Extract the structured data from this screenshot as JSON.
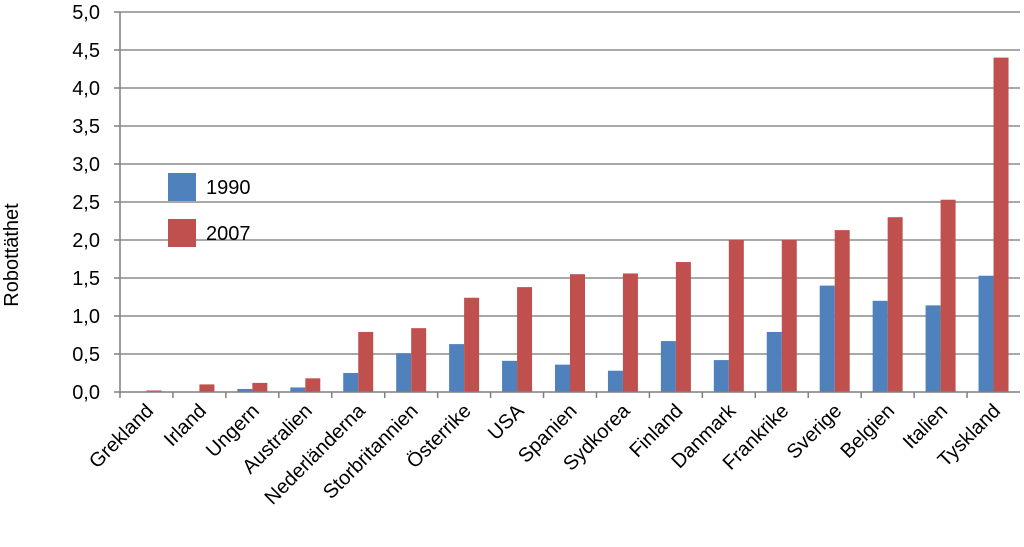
{
  "chart_data": {
    "type": "bar",
    "ylabel": "Robottäthet",
    "ylim": [
      0,
      5.0
    ],
    "ytick_step": 0.5,
    "ytick_labels": [
      "0,0",
      "0,5",
      "1,0",
      "1,5",
      "2,0",
      "2,5",
      "3,0",
      "3,5",
      "4,0",
      "4,5",
      "5,0"
    ],
    "grid": true,
    "legend_position": "top-left",
    "categories": [
      "Grekland",
      "Irland",
      "Ungern",
      "Australien",
      "Nederländerna",
      "Storbritannien",
      "Österrike",
      "USA",
      "Spanien",
      "Sydkorea",
      "Finland",
      "Danmark",
      "Frankrike",
      "Sverige",
      "Belgien",
      "Italien",
      "Tyskland"
    ],
    "series": [
      {
        "name": "1990",
        "color": "#4F81BD",
        "values": [
          0.0,
          0.0,
          0.04,
          0.06,
          0.25,
          0.51,
          0.63,
          0.41,
          0.36,
          0.28,
          0.67,
          0.42,
          0.79,
          1.4,
          1.2,
          1.14,
          1.53
        ]
      },
      {
        "name": "2007",
        "color": "#C0504D",
        "values": [
          0.02,
          0.1,
          0.12,
          0.18,
          0.79,
          0.84,
          1.24,
          1.38,
          1.55,
          1.56,
          1.71,
          2.0,
          2.0,
          2.13,
          2.3,
          2.53,
          4.4
        ]
      }
    ]
  }
}
